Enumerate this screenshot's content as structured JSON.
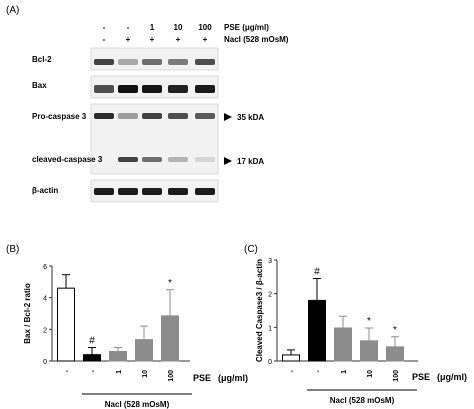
{
  "panel_a": {
    "label": "(A)",
    "column_headers": {
      "pse_values": [
        "-",
        "-",
        "1",
        "10",
        "100"
      ],
      "pse_label": "PSE (μg/ml)",
      "nacl_values": [
        "-",
        "+",
        "+",
        "+",
        "+"
      ],
      "nacl_label": "Nacl (528 mOsM)"
    },
    "rows": [
      {
        "name": "Bcl-2",
        "intensity": [
          0.75,
          0.3,
          0.55,
          0.5,
          0.7
        ]
      },
      {
        "name": "Bax",
        "intensity": [
          0.7,
          0.97,
          0.95,
          0.9,
          0.93
        ]
      },
      {
        "name": "Pro-caspase 3",
        "intensity": [
          0.85,
          0.35,
          0.75,
          0.7,
          0.65
        ],
        "marker": "35 kDA"
      },
      {
        "name": "cleaved-caspase 3",
        "intensity": [
          0.02,
          0.75,
          0.55,
          0.25,
          0.1
        ],
        "marker": "17 kDA"
      },
      {
        "name": "β-actin",
        "intensity": [
          0.92,
          0.92,
          0.92,
          0.92,
          0.92
        ]
      }
    ]
  },
  "chart_data": [
    {
      "type": "bar",
      "panel_label": "(B)",
      "ylabel": "Bax / Bcl-2 ratio",
      "ylim": [
        0,
        6
      ],
      "yticks": [
        "0",
        "2",
        "4",
        "6"
      ],
      "categories": [
        "-",
        "-",
        "1",
        "10",
        "100"
      ],
      "values": [
        4.6,
        0.4,
        0.6,
        1.35,
        2.85
      ],
      "errors": [
        0.85,
        0.45,
        0.25,
        0.85,
        1.65
      ],
      "bar_colors": [
        "#ffffff",
        "#000000",
        "#8c8c8c",
        "#8c8c8c",
        "#8c8c8c"
      ],
      "annotations": [
        "",
        "#",
        "",
        "",
        "*"
      ],
      "x_axis_label": "PSE",
      "x_axis_unit": "(μg/ml)",
      "group_label": "Nacl (528 mOsM)"
    },
    {
      "type": "bar",
      "panel_label": "(C)",
      "ylabel": "Cleaved Caspase3 / β-actin",
      "ylim": [
        0,
        3
      ],
      "yticks": [
        "0",
        "1",
        "2",
        "3"
      ],
      "categories": [
        "-",
        "-",
        "1",
        "10",
        "100"
      ],
      "values": [
        0.18,
        1.8,
        0.98,
        0.6,
        0.42
      ],
      "errors": [
        0.15,
        0.65,
        0.35,
        0.38,
        0.3
      ],
      "bar_colors": [
        "#ffffff",
        "#000000",
        "#8c8c8c",
        "#8c8c8c",
        "#8c8c8c"
      ],
      "annotations": [
        "",
        "#",
        "",
        "*",
        "*"
      ],
      "x_axis_label": "PSE",
      "x_axis_unit": "(μg/ml)",
      "group_label": "Nacl (528 mOsM)"
    }
  ]
}
